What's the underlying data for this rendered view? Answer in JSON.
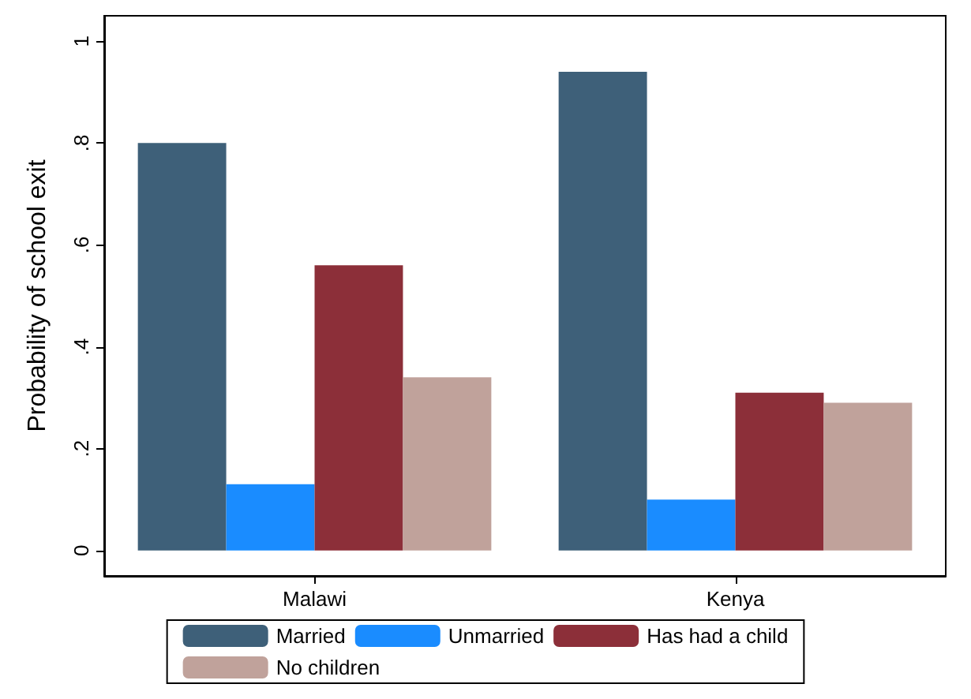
{
  "chart_data": {
    "type": "bar",
    "ylabel": "Probability of school exit",
    "categories": [
      "Malawi",
      "Kenya"
    ],
    "series": [
      {
        "name": "Married",
        "color": "#3e6079",
        "values": [
          0.8,
          0.94
        ]
      },
      {
        "name": "Unmarried",
        "color": "#1a8cff",
        "values": [
          0.13,
          0.1
        ]
      },
      {
        "name": "Has had a child",
        "color": "#8c2f39",
        "values": [
          0.56,
          0.31
        ]
      },
      {
        "name": "No children",
        "color": "#c0a29b",
        "values": [
          0.34,
          0.29
        ]
      }
    ],
    "ylim": [
      -0.05,
      1.05
    ],
    "yticks": [
      0,
      {
        "value": 0.2,
        "label": ".2"
      },
      {
        "value": 0.4,
        "label": ".4"
      },
      {
        "value": 0.6,
        "label": ".6"
      },
      {
        "value": 0.8,
        "label": ".8"
      },
      1
    ],
    "grid": false,
    "legend": "bottom"
  }
}
